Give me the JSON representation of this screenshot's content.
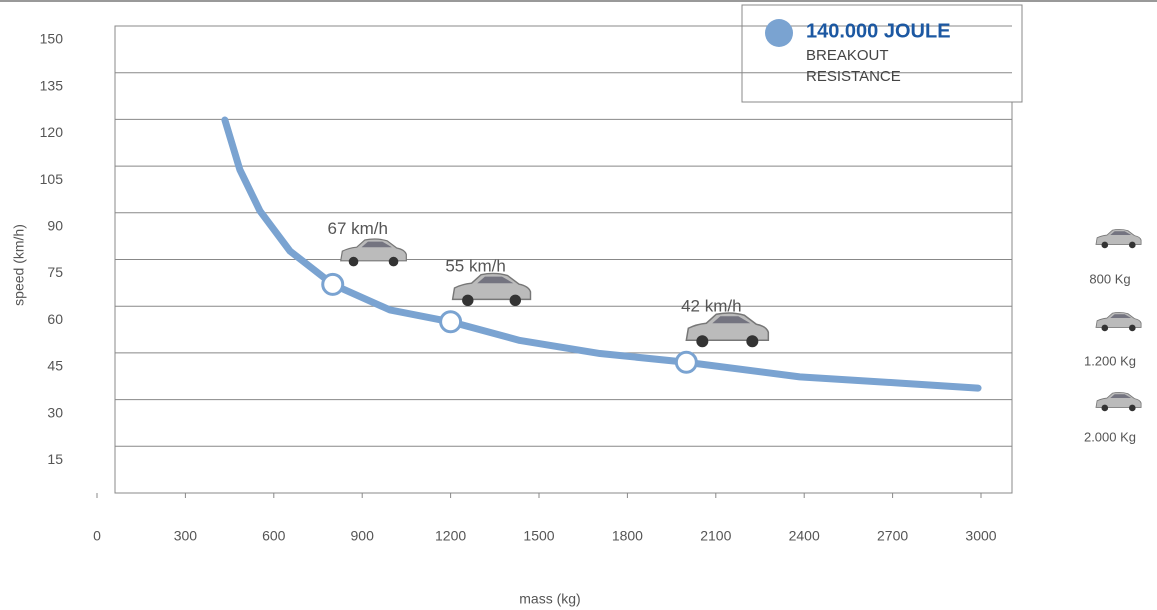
{
  "chart_data": {
    "type": "line",
    "x_label": "mass (kg)",
    "y_label": "speed (km/h)",
    "xlim": [
      0,
      3000
    ],
    "ylim": [
      0,
      150
    ],
    "xticks": [
      0,
      300,
      600,
      900,
      1200,
      1500,
      1800,
      2100,
      2400,
      2700,
      3000
    ],
    "yticks": [
      15,
      30,
      45,
      60,
      75,
      90,
      105,
      120,
      135,
      150
    ],
    "grid": true,
    "series": [
      {
        "name": "140.000 JOULE",
        "color": "#7aa3d1",
        "x": [
          434,
          485,
          553,
          655,
          800,
          994,
          1200,
          1435,
          1707,
          2000,
          2385,
          2725,
          2990
        ],
        "values": [
          119.8,
          103.8,
          90.6,
          77.7,
          67,
          58.8,
          55,
          49.0,
          44.8,
          42,
          37.3,
          35.3,
          33.7
        ]
      }
    ],
    "legend_note": [
      "BREAKOUT",
      "RESISTANCE"
    ],
    "highlights": {
      "x": [
        800,
        1200,
        2000
      ],
      "values": [
        67,
        55,
        42
      ],
      "value_labels": [
        "67 km/h",
        "55 km/h",
        "42 km/h"
      ]
    },
    "reference_labels": [
      "800 Kg",
      "1.200 Kg",
      "2.000 Kg"
    ]
  }
}
